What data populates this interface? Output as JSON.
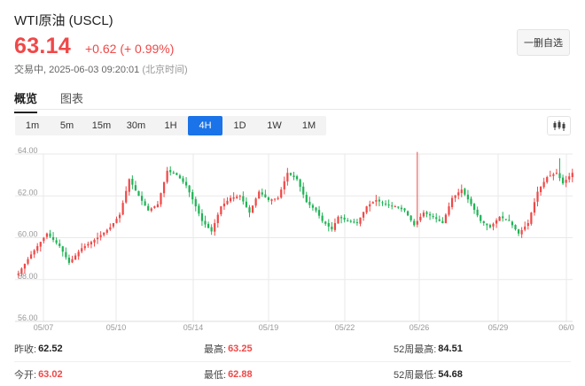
{
  "header": {
    "title": "WTI原油  (USCL)",
    "price": "63.14",
    "change": "+0.62 (+ 0.99%)",
    "status": "交易中,",
    "datetime": "2025-06-03 09:20:01",
    "timezone": "(北京时间)",
    "favorite_label": "一删自选"
  },
  "tabs": [
    {
      "label": "概览",
      "active": true
    },
    {
      "label": "图表",
      "active": false
    }
  ],
  "periods": [
    {
      "label": "1m",
      "active": false
    },
    {
      "label": "5m",
      "active": false
    },
    {
      "label": "15m",
      "active": false
    },
    {
      "label": "30m",
      "active": false
    },
    {
      "label": "1H",
      "active": false
    },
    {
      "label": "4H",
      "active": true
    },
    {
      "label": "1D",
      "active": false
    },
    {
      "label": "1W",
      "active": false
    },
    {
      "label": "1M",
      "active": false
    }
  ],
  "chart_type_icon": "candlestick-icon",
  "colors": {
    "up": "#f04848",
    "down": "#21b356",
    "accent": "#1a73e8",
    "grid": "#e9e9e9"
  },
  "chart_data": {
    "type": "candlestick",
    "ylim": [
      56,
      64
    ],
    "y_ticks": [
      "64.00",
      "62.00",
      "60.00",
      "58.00",
      "56.00"
    ],
    "x_tick_labels": [
      "05/07",
      "05/10",
      "05/14",
      "05/19",
      "05/22",
      "05/26",
      "05/29",
      "06/0"
    ],
    "grid": true,
    "approx_close_path": [
      [
        0,
        58.3
      ],
      [
        4,
        59.2
      ],
      [
        9,
        60.2
      ],
      [
        13,
        59.6
      ],
      [
        16,
        58.8
      ],
      [
        20,
        59.5
      ],
      [
        25,
        60.0
      ],
      [
        29,
        60.5
      ],
      [
        32,
        61.1
      ],
      [
        35,
        62.8
      ],
      [
        38,
        62.0
      ],
      [
        41,
        61.3
      ],
      [
        44,
        61.6
      ],
      [
        47,
        63.2
      ],
      [
        50,
        63.0
      ],
      [
        53,
        62.5
      ],
      [
        56,
        61.5
      ],
      [
        58,
        60.8
      ],
      [
        61,
        60.3
      ],
      [
        64,
        61.5
      ],
      [
        67,
        61.9
      ],
      [
        70,
        62.0
      ],
      [
        73,
        61.2
      ],
      [
        76,
        62.2
      ],
      [
        79,
        61.8
      ],
      [
        82,
        61.9
      ],
      [
        85,
        63.1
      ],
      [
        88,
        62.8
      ],
      [
        91,
        61.7
      ],
      [
        94,
        61.3
      ],
      [
        96,
        60.8
      ],
      [
        99,
        60.4
      ],
      [
        101,
        61.0
      ],
      [
        104,
        60.8
      ],
      [
        107,
        60.7
      ],
      [
        110,
        61.5
      ],
      [
        113,
        61.8
      ],
      [
        116,
        61.6
      ],
      [
        119,
        61.5
      ],
      [
        122,
        61.3
      ],
      [
        125,
        60.6
      ],
      [
        128,
        61.2
      ],
      [
        131,
        61.0
      ],
      [
        134,
        60.7
      ],
      [
        137,
        61.9
      ],
      [
        140,
        62.3
      ],
      [
        143,
        61.6
      ],
      [
        146,
        60.8
      ],
      [
        149,
        60.5
      ],
      [
        152,
        61.0
      ],
      [
        155,
        60.8
      ],
      [
        158,
        60.2
      ],
      [
        161,
        60.7
      ],
      [
        164,
        62.2
      ],
      [
        167,
        62.9
      ],
      [
        170,
        63.1
      ],
      [
        172,
        62.6
      ],
      [
        175,
        63.1
      ]
    ]
  },
  "stats": [
    [
      {
        "label": "昨收:",
        "value": "62.52",
        "red": false
      },
      {
        "label": "最高:",
        "value": "63.25",
        "red": true
      },
      {
        "label": "52周最高:",
        "value": "84.51",
        "red": false
      }
    ],
    [
      {
        "label": "今开:",
        "value": "63.02",
        "red": true
      },
      {
        "label": "最低:",
        "value": "62.88",
        "red": true
      },
      {
        "label": "52周最低:",
        "value": "54.68",
        "red": false
      }
    ]
  ]
}
